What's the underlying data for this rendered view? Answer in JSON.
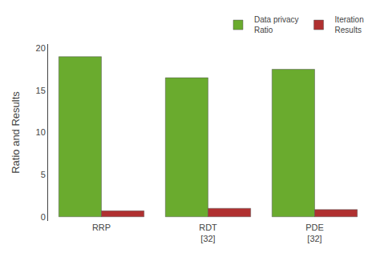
{
  "chart_data": {
    "type": "bar",
    "categories": [
      "RRP",
      "RDT\n[32]",
      "PDE\n[32]"
    ],
    "series": [
      {
        "name": "Data privacy\nRatio",
        "color": "#6AAB2E",
        "values": [
          19.0,
          16.5,
          17.5
        ]
      },
      {
        "name": "Iteration\nResults",
        "color": "#B03030",
        "values": [
          0.7,
          1.0,
          0.85
        ]
      }
    ],
    "ylabel": "Ratio and Results",
    "ylim": [
      -0.5,
      20.5
    ],
    "yticks": [
      0,
      5,
      10,
      15,
      20
    ],
    "grid": false,
    "legend": "upper right"
  }
}
